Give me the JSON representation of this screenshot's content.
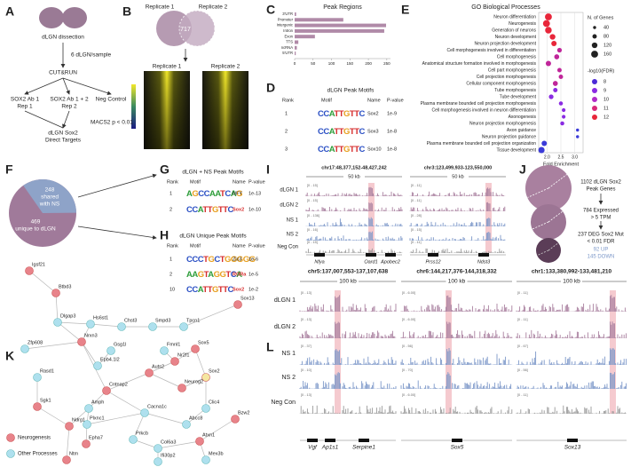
{
  "panel_labels": [
    "A",
    "B",
    "C",
    "D",
    "E",
    "F",
    "G",
    "H",
    "I",
    "J",
    "K",
    "L"
  ],
  "A": {
    "steps": [
      "dLGN dissection",
      "6 dLGN/sample",
      "CUT&RUN",
      "SOX2 Ab 1",
      "Rep 1",
      "SOX2 Ab 1 + 2",
      "Rep 2",
      "Neg Control",
      "MACS2 p < 0.01",
      "dLGN Sox2",
      "Direct Targets"
    ]
  },
  "B": {
    "venn_labels": [
      "Replicate 1",
      "Replicate 2"
    ],
    "overlap": "717",
    "heatmap_labels": [
      "Replicate 1",
      "Replicate 2"
    ]
  },
  "chart_data": [
    {
      "type": "bar",
      "horizontal": true,
      "title": "Peak Regions",
      "categories": [
        "3'UTR",
        "Promoter",
        "Intergenic",
        "Intron",
        "Exon",
        "TTS",
        "ncRNA",
        "5'UTR"
      ],
      "values": [
        4,
        132,
        248,
        243,
        55,
        10,
        6,
        3
      ],
      "color": "#b08aa8",
      "xlim": [
        0,
        260
      ],
      "xticks": [
        0,
        50,
        100,
        150,
        200,
        250
      ]
    },
    {
      "type": "scatter",
      "title": "GO Biological Processes",
      "xlabel": "Fold Enrichment",
      "categories": [
        "Neuron differentiation",
        "Neurogenesis",
        "Generation of neurons",
        "Neuron development",
        "Neuron projection development",
        "Cell morphogenesis involved in differentiation",
        "Cell morphogenesis",
        "Anatomical structure formation involved in morphogenesis",
        "Cell part morphogenesis",
        "Cell projection morphogenesis",
        "Cellular component morphogenesis",
        "Tube morphogenesis",
        "Tube development",
        "Plasma membrane bounded cell projection morphogenesis",
        "Cell morphogenesis involved in neuron differentiation",
        "Axonogenesis",
        "Neuron projection morphogenesis",
        "Axon guidance",
        "Neuron projection guidance",
        "Plasma membrane bounded cell projection organization",
        "Tissue development"
      ],
      "values": [
        2.05,
        1.98,
        2.05,
        2.2,
        2.25,
        2.45,
        2.35,
        2.05,
        2.45,
        2.5,
        2.3,
        2.3,
        2.15,
        2.5,
        2.6,
        2.6,
        2.55,
        3.1,
        3.1,
        1.9,
        1.8
      ],
      "sizes": [
        160,
        160,
        150,
        120,
        110,
        90,
        100,
        110,
        80,
        80,
        100,
        80,
        90,
        70,
        60,
        60,
        70,
        40,
        40,
        110,
        140
      ],
      "colors": [
        "#e8263a",
        "#e8263a",
        "#e8263a",
        "#e8263a",
        "#e8263a",
        "#c0269a",
        "#c0269a",
        "#c0269a",
        "#c0269a",
        "#c0269a",
        "#c0269a",
        "#8a2be2",
        "#8a2be2",
        "#8a2be2",
        "#8a2be2",
        "#8a2be2",
        "#8a2be2",
        "#3a3ad8",
        "#3a3ad8",
        "#3a3ad8",
        "#3a3ad8"
      ],
      "xlim": [
        1.7,
        3.3
      ],
      "xticks": [
        {
          "value": 2,
          "label": "2.0"
        },
        2.5,
        {
          "value": 3,
          "label": "3.0"
        }
      ],
      "size_legend": {
        "title": "N. of Genes",
        "values": [
          40,
          80,
          120,
          160
        ]
      },
      "color_legend": {
        "title": "-log10(FDR)",
        "values": [
          8,
          9,
          10,
          11,
          12
        ],
        "colors": [
          "#4b2ad6",
          "#8a2be2",
          "#b02ac8",
          "#d8287a",
          "#e8263a"
        ]
      }
    }
  ],
  "D": {
    "title": "dLGN Peak Motifs",
    "header": [
      "Rank",
      "Motif",
      "Name",
      "P-value"
    ],
    "rows": [
      [
        "1",
        "CCATTGTTC",
        "Sox2",
        "1e-9"
      ],
      [
        "2",
        "CCATTGTTC",
        "Sox3",
        "1e-8"
      ],
      [
        "3",
        "CCATTGTTC",
        "Sox10",
        "1e-8"
      ]
    ]
  },
  "F": {
    "shared": [
      "248",
      "shared",
      "with NS"
    ],
    "unique": [
      "469",
      "unique to dLGN"
    ]
  },
  "G": {
    "title": "dLGN + NS Peak Motifs",
    "header": [
      "Rank",
      "Motif",
      "Name",
      "P-value"
    ],
    "rows": [
      [
        "1",
        "AGCCAATCAG",
        "NFY",
        "1e-13"
      ],
      [
        "2",
        "CCATTGTTC",
        "Sox2",
        "1e-10"
      ]
    ],
    "highlight": [
      "Sox2"
    ]
  },
  "H": {
    "title": "dLGN Unique Peak Motifs",
    "header": [
      "Rank",
      "Motif",
      "Name",
      "P-value"
    ],
    "rows": [
      [
        "1",
        "CCCTGCTGGGGG",
        "Zic3",
        "1e-6"
      ],
      [
        "2",
        "AAGTAGGTCA",
        "RORa",
        "1e-5"
      ],
      [
        "10",
        "CCATTGTTC",
        "Sox2",
        "1e-2"
      ]
    ],
    "highlight": [
      "RORa",
      "Sox2"
    ]
  },
  "I": {
    "tracks": [
      "dLGN 1",
      "dLGN 2",
      "NS 1",
      "NS 2",
      "Neg Con"
    ],
    "regions": [
      {
        "coords": "chr17:48,377,152-48,427,242",
        "scale": "50 kb",
        "ranges": [
          "[0 - 15]",
          "[0 - 15]",
          "[0 - 136]",
          "[0 - 16]",
          "[0 - 15]"
        ],
        "genes": [
          "Nfya",
          "Oard1",
          "Apobec2"
        ]
      },
      {
        "coords": "chr3:123,499,933-123,550,000",
        "scale": "50 kb",
        "ranges": [
          "[0 - 11]",
          "[0 - 11]",
          "[0 - 28]",
          "[0 - 15]",
          "[0 - 11]"
        ],
        "genes": [
          "Prss12",
          "Ndst3"
        ]
      }
    ]
  },
  "J": {
    "steps": [
      [
        "1102 dLGN Sox2",
        "Peak Genes"
      ],
      [
        "784 Expressed",
        "> 5 TPM"
      ],
      [
        "237 DEG Sox2 Mut",
        "< 0.01 FDR"
      ]
    ],
    "up": "92 UP",
    "down": "145 DOWN"
  },
  "K": {
    "legend": [
      "Neurogenesis",
      "Other Processes"
    ],
    "nodes": [
      {
        "label": "Igsf21",
        "neurogenesis": true
      },
      {
        "label": "Btbd3",
        "neurogenesis": true
      },
      {
        "label": "Dlgap3",
        "neurogenesis": false
      },
      {
        "label": "Zfp608",
        "neurogenesis": false
      },
      {
        "label": "Rasd1",
        "neurogenesis": false
      },
      {
        "label": "Sgk1",
        "neurogenesis": true
      },
      {
        "label": "Ndrg1",
        "neurogenesis": true
      },
      {
        "label": "Ntm",
        "neurogenesis": true
      },
      {
        "label": "Nrxn3",
        "neurogenesis": true
      },
      {
        "label": "Hs6st1",
        "neurogenesis": false
      },
      {
        "label": "Chst3",
        "neurogenesis": false
      },
      {
        "label": "Smpd3",
        "neurogenesis": false
      },
      {
        "label": "Tpcn1",
        "neurogenesis": false
      },
      {
        "label": "Sox13",
        "neurogenesis": true
      },
      {
        "label": "Gsg1l",
        "neurogenesis": false
      },
      {
        "label": "Fmnl1",
        "neurogenesis": false
      },
      {
        "label": "Nr2f1",
        "neurogenesis": true
      },
      {
        "label": "Sox5",
        "neurogenesis": true
      },
      {
        "label": "Epb4.1l2",
        "neurogenesis": false
      },
      {
        "label": "Auts2",
        "neurogenesis": true
      },
      {
        "label": "Sox2",
        "neurogenesis": true
      },
      {
        "label": "Neurog2",
        "neurogenesis": true
      },
      {
        "label": "Cntnap2",
        "neurogenesis": true
      },
      {
        "label": "Amph",
        "neurogenesis": false
      },
      {
        "label": "Plxnc1",
        "neurogenesis": false
      },
      {
        "label": "Cacna1c",
        "neurogenesis": false
      },
      {
        "label": "Clic4",
        "neurogenesis": false
      },
      {
        "label": "Abcc8",
        "neurogenesis": false
      },
      {
        "label": "Epha7",
        "neurogenesis": true
      },
      {
        "label": "Prkcb",
        "neurogenesis": false
      },
      {
        "label": "Col6a3",
        "neurogenesis": false
      },
      {
        "label": "Ifi30p2",
        "neurogenesis": false
      },
      {
        "label": "Atxn1",
        "neurogenesis": true
      },
      {
        "label": "Bzw2",
        "neurogenesis": true
      },
      {
        "label": "Mex3b",
        "neurogenesis": false
      }
    ]
  },
  "L": {
    "tracks": [
      "dLGN 1",
      "dLGN 2",
      "NS 1",
      "NS 2",
      "Neg Con"
    ],
    "regions": [
      {
        "coords": "chr5:137,007,553-137,107,638",
        "scale": "100 kb",
        "ranges": [
          "[0 - 13]",
          "[0 - 13]",
          "[0 - 37]",
          "[0 - 10]",
          "[0 - 13]"
        ],
        "genes": [
          "Vgf",
          "Ap1s1",
          "Serpine1"
        ]
      },
      {
        "coords": "chr6:144,217,376-144,318,332",
        "scale": "100 kb",
        "ranges": [
          "[0 - 6.00]",
          "[0 - 6.00]",
          "[0 - 56]",
          "[0 - 70]",
          "[0 - 6.00]"
        ],
        "genes": [
          "Sox5"
        ]
      },
      {
        "coords": "chr1:133,380,992-133,481,210",
        "scale": "100 kb",
        "ranges": [
          "[0 - 11]",
          "[0 - 11]",
          "[0 - 67]",
          "[0 - 56]",
          "[0 - 11]"
        ],
        "genes": [
          "Sox13"
        ]
      }
    ]
  }
}
